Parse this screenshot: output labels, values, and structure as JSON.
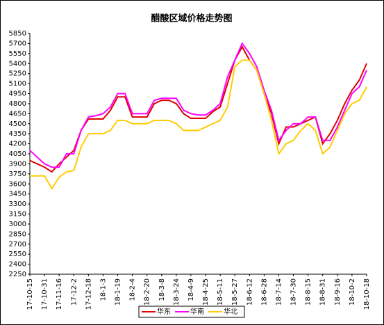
{
  "chart_data": {
    "type": "line",
    "title": "醋酸区域价格走势图",
    "categories": [
      "17-10-15",
      null,
      "17-10-31",
      null,
      "17-11-16",
      null,
      "17-12-2",
      null,
      "17-12-18",
      null,
      "18-1-3",
      null,
      "18-1-19",
      null,
      "18-2-4",
      null,
      "18-2-20",
      null,
      "18-3-8",
      null,
      "18-3-24",
      null,
      "18-4-9",
      null,
      "18-4-25",
      null,
      "18-5-11",
      null,
      "18-5-27",
      null,
      "18-6-12",
      null,
      "18-6-28",
      null,
      "18-7-14",
      null,
      "18-7-30",
      null,
      "18-8-15",
      null,
      "18-8-31",
      null,
      "18-9-16",
      null,
      "18-10-2",
      null,
      "18-10-18"
    ],
    "series": [
      {
        "name": "华东",
        "color": "#e00000",
        "values": [
          3950,
          3900,
          3850,
          3780,
          3900,
          4000,
          4100,
          4400,
          4570,
          4570,
          4570,
          4700,
          4900,
          4900,
          4600,
          4600,
          4600,
          4800,
          4850,
          4850,
          4800,
          4650,
          4580,
          4580,
          4580,
          4680,
          4750,
          5100,
          5450,
          5650,
          5450,
          5300,
          4950,
          4650,
          4200,
          4450,
          4450,
          4500,
          4550,
          4600,
          4200,
          4350,
          4550,
          4800,
          5000,
          5150,
          5400
        ]
      },
      {
        "name": "华南",
        "color": "#ff00ff",
        "values": [
          4100,
          4000,
          3900,
          3850,
          3850,
          4050,
          4050,
          4400,
          4600,
          4620,
          4650,
          4750,
          4950,
          4950,
          4650,
          4650,
          4650,
          4850,
          4880,
          4880,
          4880,
          4700,
          4650,
          4630,
          4630,
          4700,
          4800,
          5200,
          5450,
          5700,
          5550,
          5350,
          5000,
          4700,
          4250,
          4400,
          4500,
          4500,
          4600,
          4600,
          4250,
          4250,
          4450,
          4700,
          4950,
          5050,
          5300
        ]
      },
      {
        "name": "华北",
        "color": "#ffcc00",
        "values": [
          3720,
          3720,
          3720,
          3530,
          3700,
          3780,
          3800,
          4150,
          4350,
          4350,
          4350,
          4400,
          4550,
          4550,
          4500,
          4500,
          4500,
          4550,
          4550,
          4550,
          4500,
          4400,
          4400,
          4400,
          4450,
          4500,
          4550,
          4750,
          5350,
          5450,
          5450,
          5300,
          4950,
          4550,
          4050,
          4200,
          4250,
          4400,
          4500,
          4400,
          4050,
          4150,
          4400,
          4650,
          4800,
          4850,
          5050
        ]
      }
    ],
    "ylim": [
      2250,
      5850
    ],
    "yticks": [
      2250,
      2400,
      2550,
      2700,
      2850,
      3000,
      3150,
      3300,
      3450,
      3600,
      3750,
      3900,
      4050,
      4200,
      4350,
      4500,
      4650,
      4800,
      4950,
      5100,
      5250,
      5400,
      5550,
      5700,
      5850
    ],
    "grid": false,
    "legend": "bottom"
  }
}
